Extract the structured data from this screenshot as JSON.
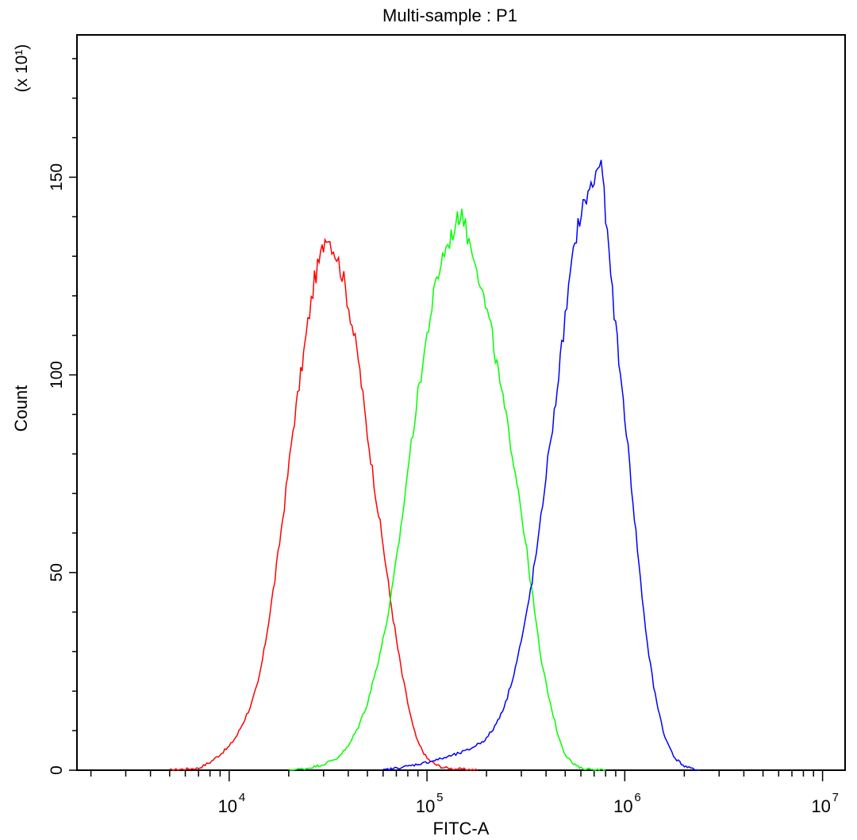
{
  "chart_data": {
    "type": "line",
    "title": "Multi-sample : P1",
    "xlabel": "FITC-A",
    "ylabel": "Count",
    "y_multiplier": "(x 10¹)",
    "x_scale": "log",
    "xlim": [
      1700,
      13000000
    ],
    "ylim": [
      0,
      186
    ],
    "y_ticks": [
      0,
      10,
      20,
      30,
      40,
      50,
      60,
      70,
      80,
      90,
      100,
      110,
      120,
      130,
      140,
      150,
      160,
      170,
      180
    ],
    "y_tick_labels": [
      "0",
      "50",
      "100",
      "150"
    ],
    "x_tick_labels": [
      {
        "base": "10",
        "exp": "4"
      },
      {
        "base": "10",
        "exp": "5"
      },
      {
        "base": "10",
        "exp": "6"
      },
      {
        "base": "10",
        "exp": "7"
      }
    ],
    "grid": false,
    "legend": "none",
    "series": [
      {
        "color": "#ff0000",
        "x": [
          5000,
          6000,
          7000,
          8000,
          9000,
          10000,
          11000,
          12000,
          13000,
          14000,
          15000,
          17000,
          19000,
          21000,
          23000,
          25000,
          27000,
          29000,
          31000,
          33000,
          35000,
          38000,
          41000,
          45000,
          50000,
          55000,
          60000,
          65000,
          70000,
          75000,
          80000,
          85000,
          90000,
          100000,
          110000,
          120000,
          140000,
          160000,
          180000
        ],
        "y": [
          0,
          0.3,
          0.5,
          2,
          4,
          6,
          9,
          13,
          17,
          22,
          30,
          48,
          67,
          86,
          100,
          113,
          124,
          130,
          136,
          133,
          130,
          124,
          115,
          104,
          85,
          70,
          57,
          44,
          33,
          24,
          17,
          11,
          7,
          3,
          1.5,
          0.7,
          0.3,
          0.2,
          0
        ]
      },
      {
        "color": "#00ff00",
        "x": [
          20000,
          25000,
          30000,
          35000,
          40000,
          45000,
          50000,
          55000,
          60000,
          65000,
          70000,
          75000,
          80000,
          90000,
          100000,
          110000,
          120000,
          130000,
          140000,
          150000,
          160000,
          175000,
          190000,
          210000,
          230000,
          260000,
          290000,
          320000,
          350000,
          380000,
          420000,
          460000,
          500000,
          550000,
          600000,
          700000,
          800000
        ],
        "y": [
          0,
          0.5,
          1.5,
          3,
          6,
          11,
          17,
          25,
          33,
          42,
          53,
          64,
          76,
          95,
          110,
          122,
          130,
          134,
          138,
          142,
          135,
          130,
          121,
          112,
          100,
          85,
          71,
          55,
          40,
          27,
          17,
          9,
          4,
          1.5,
          0.5,
          0.2,
          0
        ]
      },
      {
        "color": "#0000ff",
        "x": [
          60000,
          80000,
          100000,
          120000,
          140000,
          160000,
          180000,
          200000,
          220000,
          250000,
          280000,
          310000,
          340000,
          370000,
          400000,
          440000,
          480000,
          530000,
          580000,
          640000,
          700000,
          760000,
          800000,
          850000,
          900000,
          950000,
          1000000,
          1100000,
          1200000,
          1300000,
          1400000,
          1500000,
          1600000,
          1800000,
          2000000,
          2200000,
          2400000
        ],
        "y": [
          0,
          1,
          2,
          3,
          4,
          5,
          6.5,
          8,
          11,
          17,
          26,
          36,
          48,
          60,
          75,
          90,
          107,
          125,
          138,
          145,
          149,
          155,
          140,
          125,
          112,
          100,
          90,
          68,
          48,
          32,
          21,
          14,
          8,
          3,
          1,
          0.3,
          0
        ]
      }
    ]
  }
}
